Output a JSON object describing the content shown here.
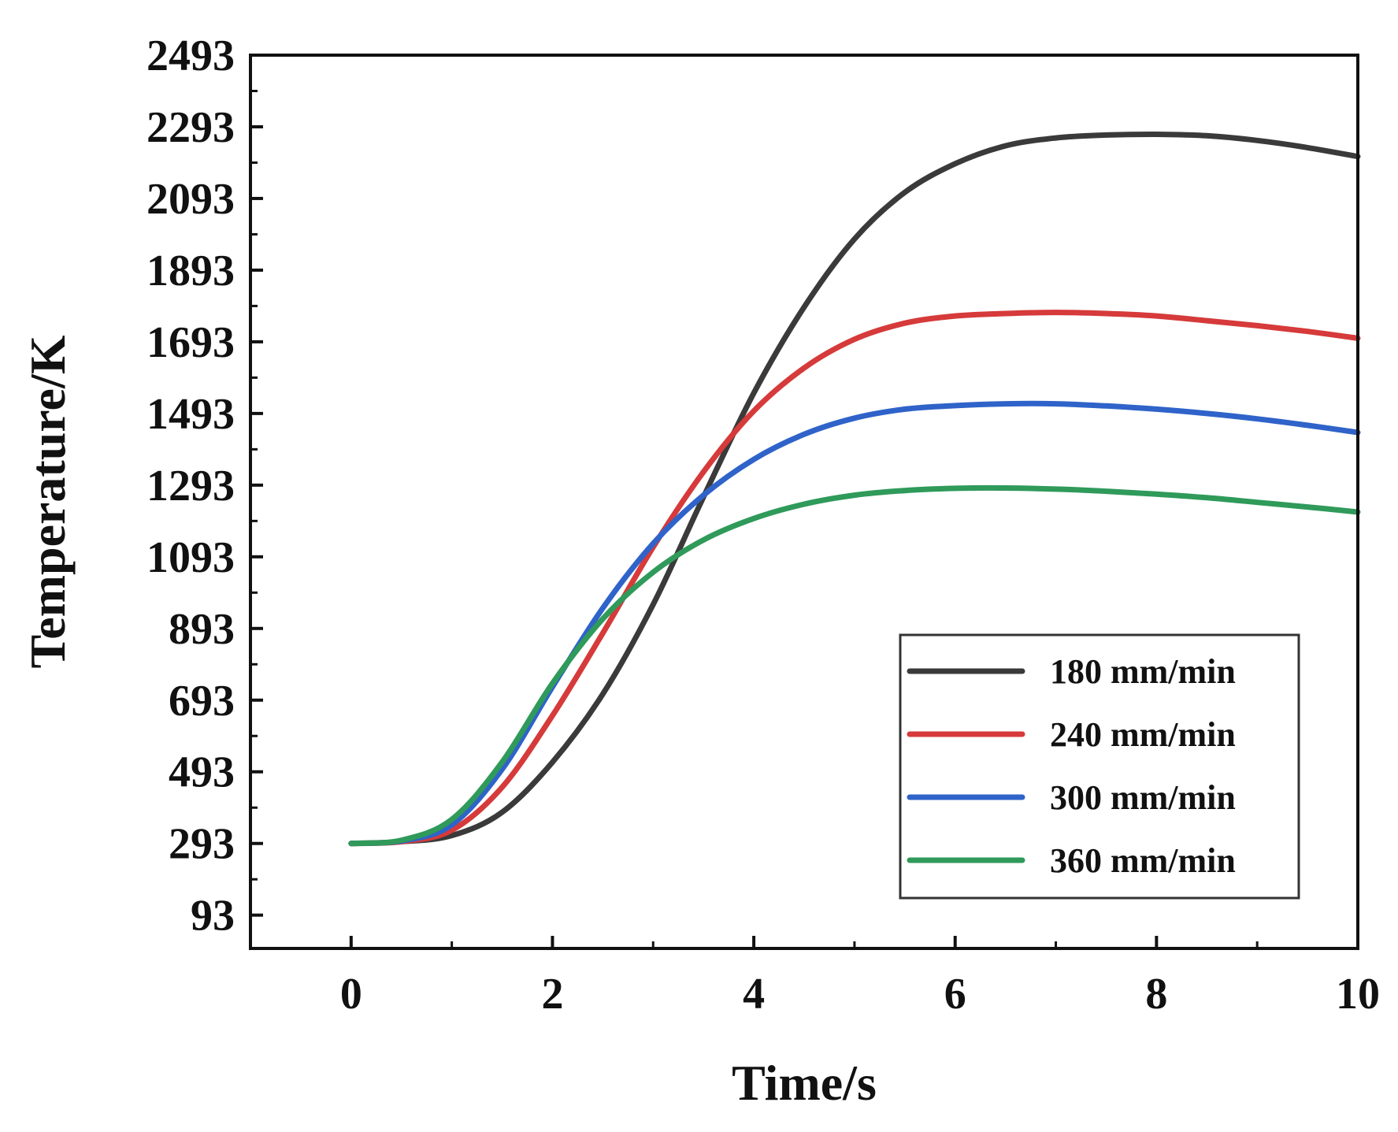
{
  "chart_data": {
    "type": "line",
    "title": "",
    "xlabel": "Time/s",
    "ylabel": "Temperature/K",
    "xlim": [
      -1,
      10
    ],
    "ylim": [
      0,
      2493
    ],
    "xticks": [
      0,
      2,
      4,
      6,
      8,
      10
    ],
    "yticks": [
      93,
      293,
      493,
      693,
      893,
      1093,
      1293,
      1493,
      1693,
      1893,
      2093,
      2293,
      2493
    ],
    "grid": false,
    "legend_position": "bottom-right",
    "series": [
      {
        "name": "180 mm/min",
        "color": "#3a3a3a",
        "x": [
          0,
          0.5,
          1,
          1.5,
          2,
          2.5,
          3,
          3.5,
          4,
          4.5,
          5,
          5.5,
          6,
          6.5,
          7,
          7.5,
          8,
          8.5,
          9,
          9.5,
          10
        ],
        "y": [
          293,
          298,
          315,
          380,
          520,
          710,
          960,
          1260,
          1550,
          1790,
          1980,
          2110,
          2190,
          2240,
          2262,
          2270,
          2272,
          2268,
          2255,
          2235,
          2210
        ]
      },
      {
        "name": "240 mm/min",
        "color": "#d63a3a",
        "x": [
          0,
          0.5,
          1,
          1.5,
          2,
          2.5,
          3,
          3.5,
          4,
          4.5,
          5,
          5.5,
          6,
          6.5,
          7,
          7.5,
          8,
          8.5,
          9,
          9.5,
          10
        ],
        "y": [
          293,
          298,
          330,
          450,
          650,
          880,
          1120,
          1330,
          1500,
          1620,
          1700,
          1745,
          1765,
          1772,
          1775,
          1772,
          1765,
          1752,
          1738,
          1722,
          1703
        ]
      },
      {
        "name": "300 mm/min",
        "color": "#2f63c9",
        "x": [
          0,
          0.5,
          1,
          1.5,
          2,
          2.5,
          3,
          3.5,
          4,
          4.5,
          5,
          5.5,
          6,
          6.5,
          7,
          7.5,
          8,
          8.5,
          9,
          9.5,
          10
        ],
        "y": [
          293,
          300,
          345,
          500,
          730,
          950,
          1130,
          1265,
          1365,
          1435,
          1480,
          1505,
          1515,
          1520,
          1520,
          1514,
          1505,
          1493,
          1478,
          1460,
          1440
        ]
      },
      {
        "name": "360 mm/min",
        "color": "#2f9a5a",
        "x": [
          0,
          0.5,
          1,
          1.5,
          2,
          2.5,
          3,
          3.5,
          4,
          4.5,
          5,
          5.5,
          6,
          6.5,
          7,
          7.5,
          8,
          8.5,
          9,
          9.5,
          10
        ],
        "y": [
          293,
          302,
          360,
          520,
          740,
          920,
          1050,
          1140,
          1200,
          1240,
          1265,
          1278,
          1284,
          1285,
          1282,
          1276,
          1268,
          1258,
          1245,
          1232,
          1218
        ]
      }
    ]
  }
}
